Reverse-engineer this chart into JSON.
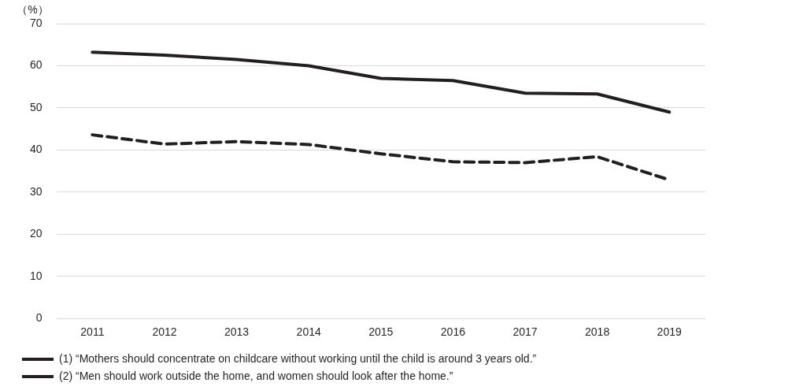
{
  "chart_data": {
    "type": "line",
    "ylabel": "（%）",
    "categories": [
      "2011",
      "2012",
      "2013",
      "2014",
      "2015",
      "2016",
      "2017",
      "2018",
      "2019"
    ],
    "series": [
      {
        "name": "(1) “Mothers should concentrate on childcare without working until the child is around 3 years old.”",
        "color": "#231f20",
        "line_style": "solid",
        "values": [
          63.2,
          62.5,
          61.5,
          60.0,
          57.0,
          56.5,
          53.5,
          53.3,
          49.0
        ]
      },
      {
        "name": "(2) “Men should work outside the home, and women should look after the home.”",
        "color": "#231f20",
        "line_style": "dashed",
        "values": [
          43.6,
          41.4,
          42.0,
          41.3,
          39.1,
          37.2,
          37.0,
          38.4,
          32.9
        ]
      }
    ],
    "ylim": [
      0,
      70
    ],
    "yticks": [
      0,
      10,
      20,
      30,
      40,
      50,
      60,
      70
    ],
    "grid": "y",
    "legend": "bottom",
    "marker": "none"
  }
}
